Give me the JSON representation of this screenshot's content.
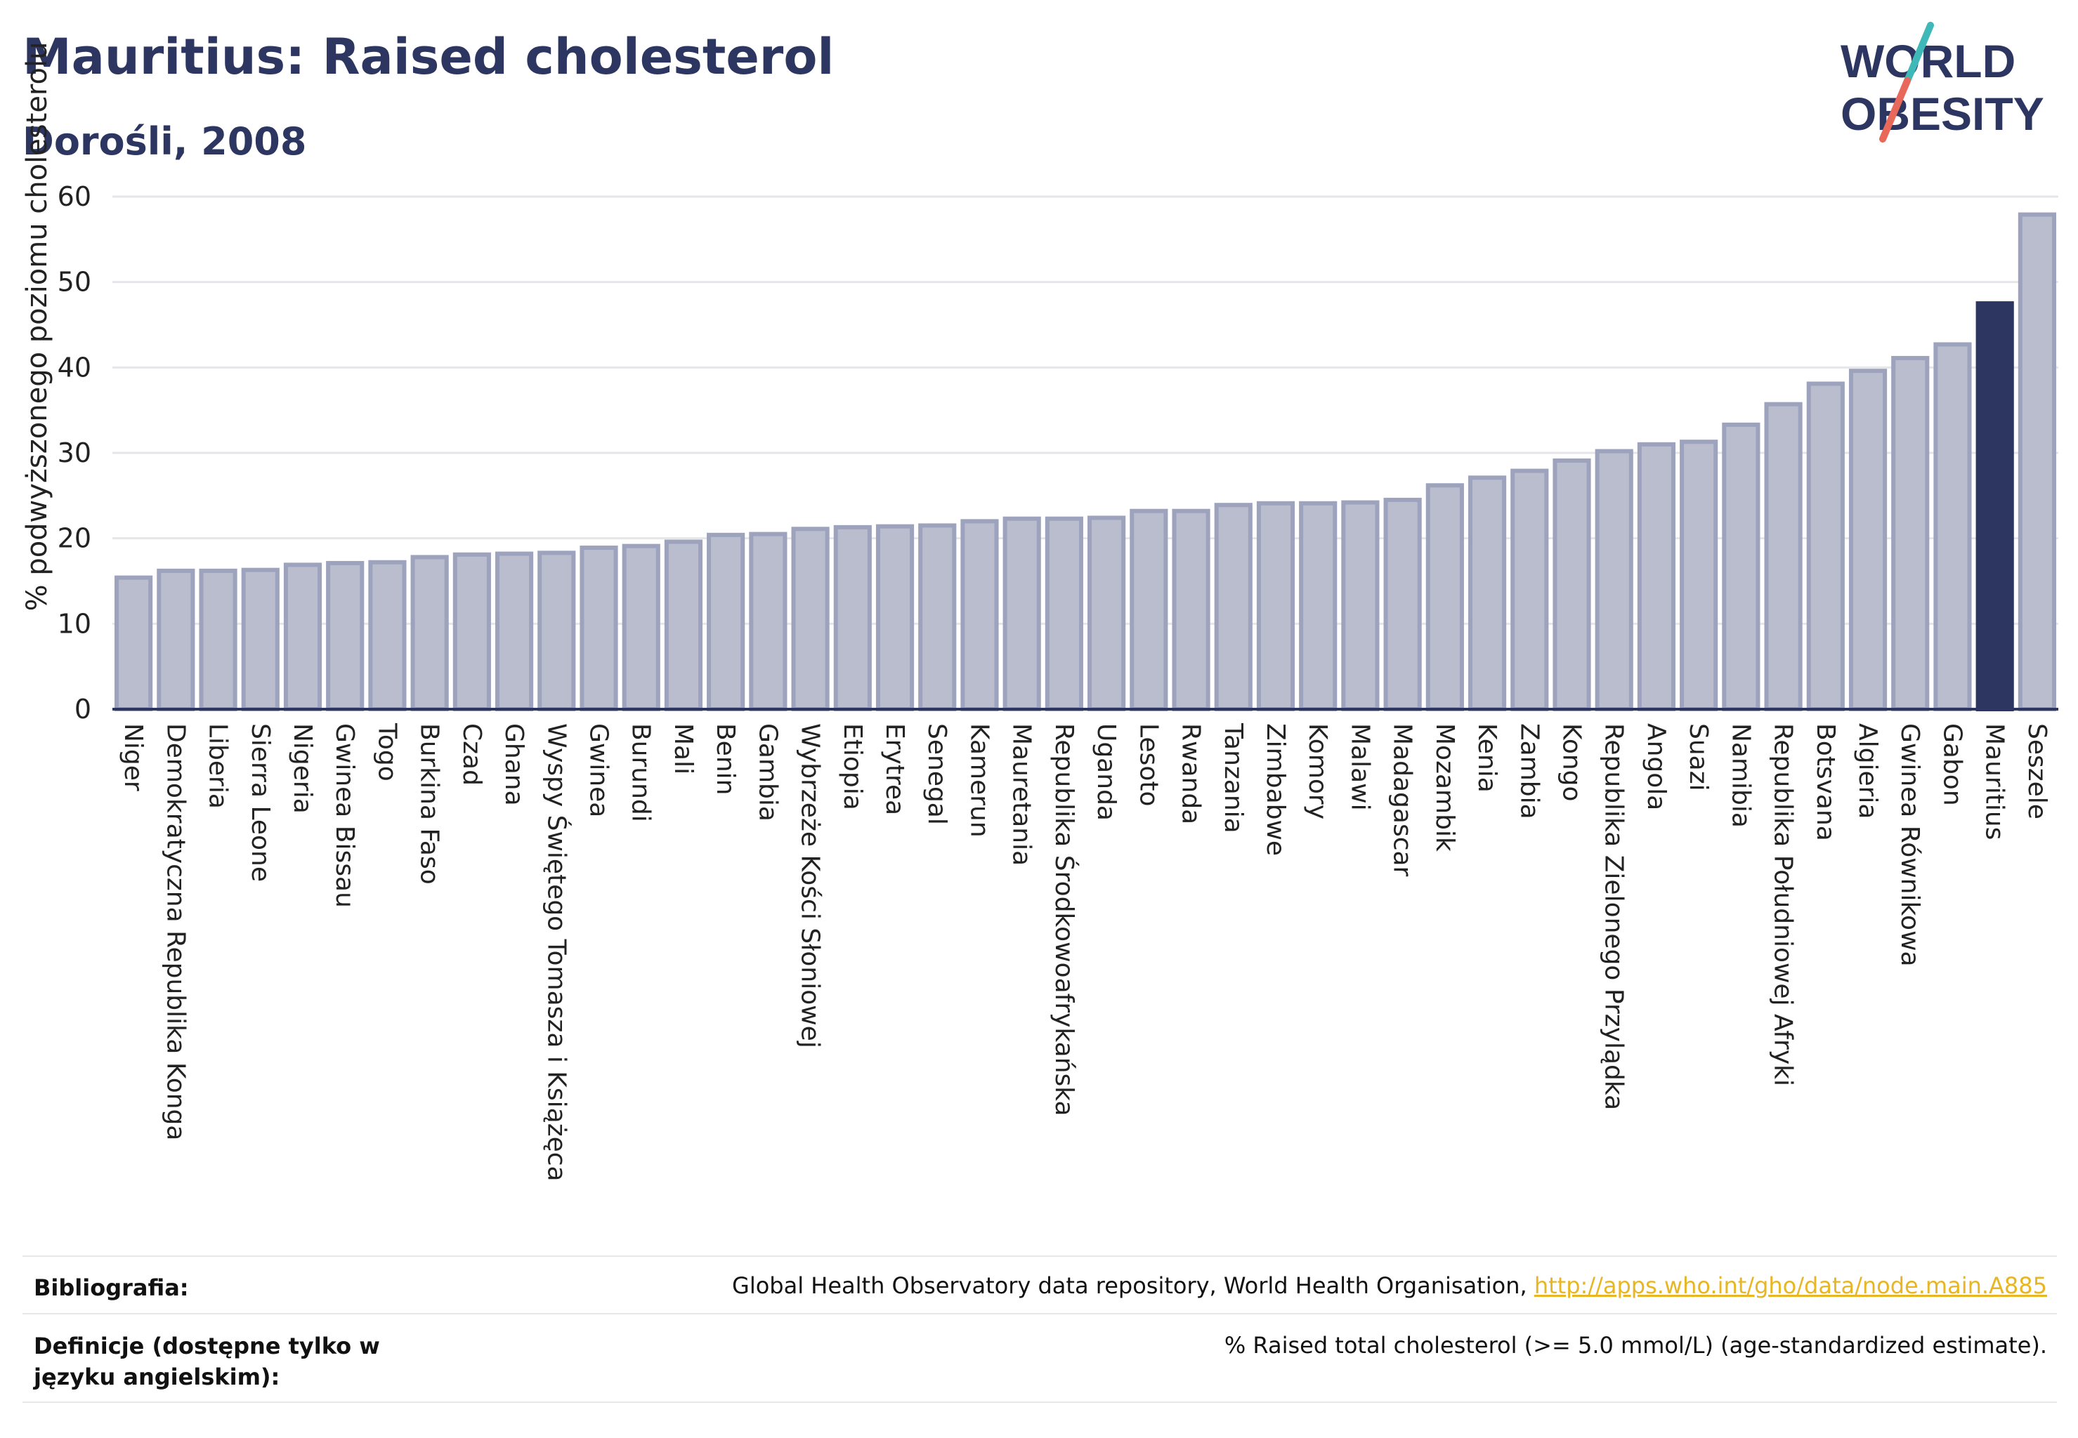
{
  "header": {
    "title": "Mauritius: Raised cholesterol",
    "subtitle": "Dorośli, 2008"
  },
  "logo": {
    "line1": "WORLD",
    "line2": "OBESITY",
    "colors": {
      "text": "#2c3660",
      "slash_teal": "#3fb8b8",
      "slash_coral": "#e8685a"
    }
  },
  "chart_data": {
    "type": "bar",
    "ylabel": "% podwyższonego poziomu cholesterolu",
    "ylim": [
      0,
      60
    ],
    "yticks": [
      0,
      10,
      20,
      30,
      40,
      50,
      60
    ],
    "grid": true,
    "highlight": "Mauritius",
    "colors": {
      "bar": "#b9bdcd",
      "bar_edge": "#9da2bd",
      "highlight": "#2c3660",
      "axis": "#2c3660",
      "grid": "#e6e6ea"
    },
    "categories": [
      "Niger",
      "Demokratyczna Republika Konga",
      "Liberia",
      "Sierra Leone",
      "Nigeria",
      "Gwinea Bissau",
      "Togo",
      "Burkina Faso",
      "Czad",
      "Ghana",
      "Wyspy Świętego Tomasza i Książęca",
      "Gwinea",
      "Burundi",
      "Mali",
      "Benin",
      "Gambia",
      "Wybrzeże Kości Słoniowej",
      "Etiopia",
      "Erytrea",
      "Senegal",
      "Kamerun",
      "Mauretania",
      "Republika Środkowoafrykańska",
      "Uganda",
      "Lesoto",
      "Rwanda",
      "Tanzania",
      "Zimbabwe",
      "Komory",
      "Malawi",
      "Madagascar",
      "Mozambik",
      "Kenia",
      "Zambia",
      "Kongo",
      "Republika Zielonego Przylądka",
      "Angola",
      "Suazi",
      "Namibia",
      "Republika Południowej Afryki",
      "Botsvana",
      "Algieria",
      "Gwinea Równikowa",
      "Gabon",
      "Mauritius",
      "Seszele"
    ],
    "values": [
      15.4,
      16.2,
      16.2,
      16.3,
      16.9,
      17.1,
      17.2,
      17.8,
      18.1,
      18.2,
      18.3,
      18.9,
      19.1,
      19.6,
      20.4,
      20.5,
      21.1,
      21.3,
      21.4,
      21.5,
      22.0,
      22.3,
      22.3,
      22.4,
      23.2,
      23.2,
      23.9,
      24.1,
      24.1,
      24.2,
      24.5,
      26.2,
      27.1,
      27.9,
      29.1,
      30.2,
      31.0,
      31.3,
      33.3,
      35.7,
      38.1,
      39.6,
      41.1,
      42.7,
      47.5,
      57.9
    ]
  },
  "footer": {
    "bibliography_label": "Bibliografia:",
    "bibliography_text": "Global Health Observatory data repository, World Health Organisation, ",
    "bibliography_link": "http://apps.who.int/gho/data/node.main.A885",
    "definitions_label": "Definicje (dostępne tylko w języku angielskim):",
    "definitions_text": "% Raised total cholesterol (>= 5.0 mmol/L) (age-standardized estimate)."
  }
}
